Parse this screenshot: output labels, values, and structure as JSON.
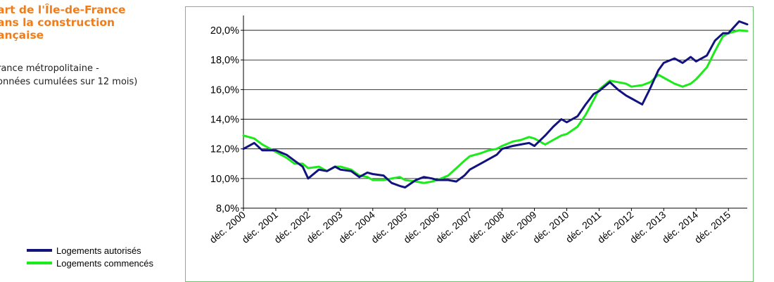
{
  "title_lines": [
    "art de l'Île-de-France",
    "ans la construction",
    "ançaise"
  ],
  "subtitle_lines": [
    "rance métropolitaine -",
    "onnées cumulées sur 12 mois)"
  ],
  "colors": {
    "title": "#f07d1a",
    "autorises": "#13137e",
    "commences": "#1bea1b",
    "frame": "#6fc06f"
  },
  "chart_data": {
    "type": "line",
    "title": "",
    "xlabel": "",
    "ylabel": "",
    "ylim": [
      8,
      21
    ],
    "yticks": [
      {
        "value": 8,
        "label": "8,0%"
      },
      {
        "value": 10,
        "label": "10,0%"
      },
      {
        "value": 12,
        "label": "12,0%"
      },
      {
        "value": 14,
        "label": "14,0%"
      },
      {
        "value": 16,
        "label": "16,0%"
      },
      {
        "value": 18,
        "label": "18,0%"
      },
      {
        "value": 20,
        "label": "20,0%"
      }
    ],
    "xticks": [
      "déc. 2000",
      "déc. 2001",
      "déc. 2002",
      "déc. 2003",
      "déc. 2004",
      "déc. 2005",
      "déc. 2006",
      "déc. 2007",
      "déc. 2008",
      "déc. 2009",
      "déc. 2010",
      "déc. 2011",
      "déc. 2012",
      "déc. 2013",
      "déc. 2014",
      "déc. 2015"
    ],
    "grid": "horizontal",
    "legend_position": "bottom-left",
    "series": [
      {
        "name": "Logements autorisés",
        "x": [
          2000.917,
          2001.25,
          2001.5,
          2001.917,
          2002.25,
          2002.5,
          2002.75,
          2002.917,
          2003.25,
          2003.5,
          2003.75,
          2003.917,
          2004.25,
          2004.5,
          2004.75,
          2004.917,
          2005.25,
          2005.5,
          2005.75,
          2005.917,
          2006.25,
          2006.5,
          2006.75,
          2006.917,
          2007.25,
          2007.5,
          2007.75,
          2007.917,
          2008.25,
          2008.5,
          2008.75,
          2008.917,
          2009.25,
          2009.5,
          2009.75,
          2009.917,
          2010.25,
          2010.5,
          2010.75,
          2010.917,
          2011.25,
          2011.5,
          2011.75,
          2011.917,
          2012.25,
          2012.5,
          2012.75,
          2012.917,
          2013.25,
          2013.5,
          2013.75,
          2013.917,
          2014.25,
          2014.5,
          2014.75,
          2014.917,
          2015.25,
          2015.5,
          2015.75,
          2015.917,
          2016.25,
          2016.5
        ],
        "values": [
          12.0,
          12.4,
          11.9,
          11.9,
          11.6,
          11.2,
          10.8,
          10.0,
          10.6,
          10.5,
          10.8,
          10.6,
          10.5,
          10.1,
          10.4,
          10.3,
          10.2,
          9.7,
          9.5,
          9.4,
          9.9,
          10.1,
          10.0,
          9.9,
          9.9,
          9.8,
          10.2,
          10.6,
          11.0,
          11.3,
          11.6,
          12.0,
          12.2,
          12.3,
          12.4,
          12.2,
          12.9,
          13.5,
          14.0,
          13.8,
          14.2,
          15.0,
          15.7,
          15.9,
          16.5,
          16.0,
          15.6,
          15.4,
          15.0,
          16.1,
          17.3,
          17.8,
          18.1,
          17.8,
          18.2,
          17.9,
          18.3,
          19.3,
          19.8,
          19.8,
          20.6,
          20.4
        ]
      },
      {
        "name": "Logements commencés",
        "x": [
          2000.917,
          2001.25,
          2001.5,
          2001.917,
          2002.25,
          2002.5,
          2002.75,
          2002.917,
          2003.25,
          2003.5,
          2003.75,
          2003.917,
          2004.25,
          2004.5,
          2004.75,
          2004.917,
          2005.25,
          2005.5,
          2005.75,
          2005.917,
          2006.25,
          2006.5,
          2006.75,
          2006.917,
          2007.25,
          2007.5,
          2007.75,
          2007.917,
          2008.25,
          2008.5,
          2008.75,
          2008.917,
          2009.25,
          2009.5,
          2009.75,
          2009.917,
          2010.25,
          2010.5,
          2010.75,
          2010.917,
          2011.25,
          2011.5,
          2011.75,
          2011.917,
          2012.25,
          2012.5,
          2012.75,
          2012.917,
          2013.25,
          2013.5,
          2013.75,
          2013.917,
          2014.25,
          2014.5,
          2014.75,
          2014.917,
          2015.25,
          2015.5,
          2015.75,
          2015.917,
          2016.25,
          2016.5
        ],
        "values": [
          12.9,
          12.7,
          12.3,
          11.8,
          11.4,
          11.0,
          11.0,
          10.7,
          10.8,
          10.5,
          10.8,
          10.8,
          10.6,
          10.2,
          10.1,
          9.9,
          9.9,
          10.0,
          10.1,
          9.9,
          9.8,
          9.7,
          9.8,
          9.9,
          10.2,
          10.7,
          11.2,
          11.5,
          11.7,
          11.9,
          12.0,
          12.2,
          12.5,
          12.6,
          12.8,
          12.7,
          12.3,
          12.6,
          12.9,
          13.0,
          13.5,
          14.3,
          15.3,
          16.0,
          16.6,
          16.5,
          16.4,
          16.2,
          16.3,
          16.5,
          17.0,
          16.8,
          16.4,
          16.2,
          16.4,
          16.7,
          17.5,
          18.6,
          19.6,
          19.8,
          20.0,
          19.95
        ]
      }
    ]
  }
}
